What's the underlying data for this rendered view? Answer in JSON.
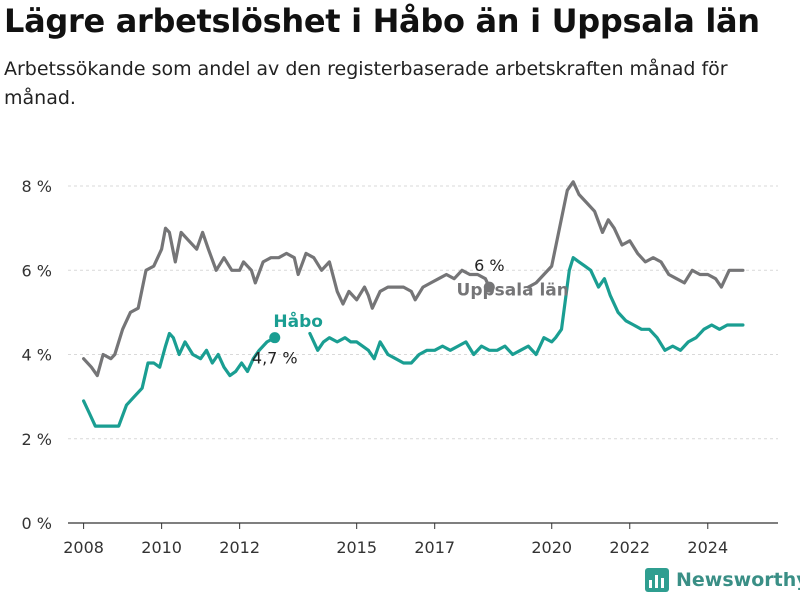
{
  "title": "Lägre arbetslöshet i Håbo än i Uppsala län",
  "subtitle": "Arbetssökande som andel av den registerbaserade arbetskraften månad för månad.",
  "brand": "Newsworthy",
  "colors": {
    "habo": "#1a9e92",
    "uppsala": "#757577",
    "axis": "#333333",
    "grid": "#d9d9d9",
    "brand": "#3a8f86"
  },
  "chart_data": {
    "type": "line",
    "title": "Lägre arbetslöshet i Håbo än i Uppsala län",
    "ylim": [
      0,
      8.5
    ],
    "xlim": [
      2007.6,
      2025.8
    ],
    "y_ticks": [
      {
        "value": 0,
        "label": "0 %"
      },
      {
        "value": 2,
        "label": "2 %"
      },
      {
        "value": 4,
        "label": "4 %"
      },
      {
        "value": 6,
        "label": "6 %"
      },
      {
        "value": 8,
        "label": "8 %"
      }
    ],
    "x_ticks": [
      {
        "value": 2008,
        "label": "2008"
      },
      {
        "value": 2010,
        "label": "2010"
      },
      {
        "value": 2012,
        "label": "2012"
      },
      {
        "value": 2015,
        "label": "2015"
      },
      {
        "value": 2017,
        "label": "2017"
      },
      {
        "value": 2020,
        "label": "2020"
      },
      {
        "value": 2022,
        "label": "2022"
      },
      {
        "value": 2024,
        "label": "2024"
      }
    ],
    "grid": "horizontal",
    "series": [
      {
        "name": "Uppsala län",
        "color": "#757577",
        "end_label": "6 %",
        "points": [
          [
            2008.0,
            3.9
          ],
          [
            2008.2,
            3.7
          ],
          [
            2008.35,
            3.5
          ],
          [
            2008.5,
            4.0
          ],
          [
            2008.7,
            3.9
          ],
          [
            2008.8,
            4.0
          ],
          [
            2009.0,
            4.6
          ],
          [
            2009.2,
            5.0
          ],
          [
            2009.4,
            5.1
          ],
          [
            2009.6,
            6.0
          ],
          [
            2009.8,
            6.1
          ],
          [
            2010.0,
            6.5
          ],
          [
            2010.1,
            7.0
          ],
          [
            2010.2,
            6.9
          ],
          [
            2010.35,
            6.2
          ],
          [
            2010.5,
            6.9
          ],
          [
            2010.7,
            6.7
          ],
          [
            2010.9,
            6.5
          ],
          [
            2011.05,
            6.9
          ],
          [
            2011.2,
            6.5
          ],
          [
            2011.4,
            6.0
          ],
          [
            2011.6,
            6.3
          ],
          [
            2011.8,
            6.0
          ],
          [
            2012.0,
            6.0
          ],
          [
            2012.1,
            6.2
          ],
          [
            2012.3,
            6.0
          ],
          [
            2012.4,
            5.7
          ],
          [
            2012.6,
            6.2
          ],
          [
            2012.8,
            6.3
          ],
          [
            2013.0,
            6.3
          ],
          [
            2013.2,
            6.4
          ],
          [
            2013.4,
            6.3
          ],
          [
            2013.5,
            5.9
          ],
          [
            2013.7,
            6.4
          ],
          [
            2013.9,
            6.3
          ],
          [
            2014.1,
            6.0
          ],
          [
            2014.3,
            6.2
          ],
          [
            2014.5,
            5.5
          ],
          [
            2014.65,
            5.2
          ],
          [
            2014.8,
            5.5
          ],
          [
            2015.0,
            5.3
          ],
          [
            2015.2,
            5.6
          ],
          [
            2015.3,
            5.4
          ],
          [
            2015.4,
            5.1
          ],
          [
            2015.6,
            5.5
          ],
          [
            2015.8,
            5.6
          ],
          [
            2016.0,
            5.6
          ],
          [
            2016.2,
            5.6
          ],
          [
            2016.4,
            5.5
          ],
          [
            2016.5,
            5.3
          ],
          [
            2016.7,
            5.6
          ],
          [
            2016.9,
            5.7
          ],
          [
            2017.1,
            5.8
          ],
          [
            2017.3,
            5.9
          ],
          [
            2017.5,
            5.8
          ],
          [
            2017.7,
            6.0
          ],
          [
            2017.9,
            5.9
          ],
          [
            2018.1,
            5.9
          ],
          [
            2018.3,
            5.8
          ],
          [
            2018.4,
            5.6
          ]
        ]
      },
      {
        "name": "Uppsala län (continued)",
        "color": "#757577",
        "points": [
          [
            2019.4,
            5.6
          ],
          [
            2019.6,
            5.7
          ],
          [
            2019.8,
            5.9
          ],
          [
            2020.0,
            6.1
          ],
          [
            2020.2,
            7.0
          ],
          [
            2020.4,
            7.9
          ],
          [
            2020.55,
            8.1
          ],
          [
            2020.7,
            7.8
          ],
          [
            2020.9,
            7.6
          ],
          [
            2021.1,
            7.4
          ],
          [
            2021.3,
            6.9
          ],
          [
            2021.45,
            7.2
          ],
          [
            2021.6,
            7.0
          ],
          [
            2021.8,
            6.6
          ],
          [
            2022.0,
            6.7
          ],
          [
            2022.2,
            6.4
          ],
          [
            2022.4,
            6.2
          ],
          [
            2022.6,
            6.3
          ],
          [
            2022.8,
            6.2
          ],
          [
            2023.0,
            5.9
          ],
          [
            2023.2,
            5.8
          ],
          [
            2023.4,
            5.7
          ],
          [
            2023.6,
            6.0
          ],
          [
            2023.8,
            5.9
          ],
          [
            2024.0,
            5.9
          ],
          [
            2024.2,
            5.8
          ],
          [
            2024.35,
            5.6
          ],
          [
            2024.55,
            6.0
          ],
          [
            2024.75,
            6.0
          ],
          [
            2024.9,
            6.0
          ]
        ]
      },
      {
        "name": "Håbo",
        "color": "#1a9e92",
        "end_label": "4,7 %",
        "points": [
          [
            2008.0,
            2.9
          ],
          [
            2008.15,
            2.6
          ],
          [
            2008.3,
            2.3
          ],
          [
            2008.5,
            2.3
          ],
          [
            2008.7,
            2.3
          ],
          [
            2008.9,
            2.3
          ],
          [
            2009.1,
            2.8
          ],
          [
            2009.3,
            3.0
          ],
          [
            2009.5,
            3.2
          ],
          [
            2009.65,
            3.8
          ],
          [
            2009.8,
            3.8
          ],
          [
            2009.95,
            3.7
          ],
          [
            2010.1,
            4.2
          ],
          [
            2010.2,
            4.5
          ],
          [
            2010.3,
            4.4
          ],
          [
            2010.45,
            4.0
          ],
          [
            2010.6,
            4.3
          ],
          [
            2010.8,
            4.0
          ],
          [
            2011.0,
            3.9
          ],
          [
            2011.15,
            4.1
          ],
          [
            2011.3,
            3.8
          ],
          [
            2011.45,
            4.0
          ],
          [
            2011.6,
            3.7
          ],
          [
            2011.75,
            3.5
          ],
          [
            2011.9,
            3.6
          ],
          [
            2012.05,
            3.8
          ],
          [
            2012.2,
            3.6
          ],
          [
            2012.35,
            3.9
          ],
          [
            2012.5,
            4.1
          ],
          [
            2012.7,
            4.3
          ],
          [
            2012.9,
            4.4
          ]
        ]
      },
      {
        "name": "Håbo (continued)",
        "color": "#1a9e92",
        "points": [
          [
            2013.8,
            4.5
          ],
          [
            2014.0,
            4.1
          ],
          [
            2014.15,
            4.3
          ],
          [
            2014.3,
            4.4
          ],
          [
            2014.5,
            4.3
          ],
          [
            2014.7,
            4.4
          ],
          [
            2014.85,
            4.3
          ],
          [
            2015.0,
            4.3
          ],
          [
            2015.15,
            4.2
          ],
          [
            2015.3,
            4.1
          ],
          [
            2015.45,
            3.9
          ],
          [
            2015.6,
            4.3
          ],
          [
            2015.8,
            4.0
          ],
          [
            2016.0,
            3.9
          ],
          [
            2016.2,
            3.8
          ],
          [
            2016.4,
            3.8
          ],
          [
            2016.6,
            4.0
          ],
          [
            2016.8,
            4.1
          ],
          [
            2017.0,
            4.1
          ],
          [
            2017.2,
            4.2
          ],
          [
            2017.4,
            4.1
          ],
          [
            2017.6,
            4.2
          ],
          [
            2017.8,
            4.3
          ],
          [
            2018.0,
            4.0
          ],
          [
            2018.2,
            4.2
          ],
          [
            2018.4,
            4.1
          ],
          [
            2018.6,
            4.1
          ],
          [
            2018.8,
            4.2
          ],
          [
            2019.0,
            4.0
          ],
          [
            2019.2,
            4.1
          ],
          [
            2019.4,
            4.2
          ],
          [
            2019.6,
            4.0
          ],
          [
            2019.8,
            4.4
          ],
          [
            2020.0,
            4.3
          ],
          [
            2020.1,
            4.4
          ],
          [
            2020.25,
            4.6
          ],
          [
            2020.35,
            5.3
          ],
          [
            2020.45,
            6.0
          ],
          [
            2020.55,
            6.3
          ],
          [
            2020.7,
            6.2
          ],
          [
            2020.85,
            6.1
          ],
          [
            2021.0,
            6.0
          ],
          [
            2021.2,
            5.6
          ],
          [
            2021.35,
            5.8
          ],
          [
            2021.5,
            5.4
          ],
          [
            2021.7,
            5.0
          ],
          [
            2021.9,
            4.8
          ],
          [
            2022.1,
            4.7
          ],
          [
            2022.3,
            4.6
          ],
          [
            2022.5,
            4.6
          ],
          [
            2022.7,
            4.4
          ],
          [
            2022.9,
            4.1
          ],
          [
            2023.1,
            4.2
          ],
          [
            2023.3,
            4.1
          ],
          [
            2023.5,
            4.3
          ],
          [
            2023.7,
            4.4
          ],
          [
            2023.9,
            4.6
          ],
          [
            2024.1,
            4.7
          ],
          [
            2024.3,
            4.6
          ],
          [
            2024.5,
            4.7
          ],
          [
            2024.7,
            4.7
          ],
          [
            2024.9,
            4.7
          ]
        ]
      }
    ],
    "labels": [
      {
        "text": "Uppsala län",
        "x": 2019.0,
        "y": 5.4,
        "series": "Uppsala län"
      },
      {
        "text": "Håbo",
        "x": 2013.5,
        "y": 4.65,
        "series": "Håbo"
      }
    ]
  }
}
